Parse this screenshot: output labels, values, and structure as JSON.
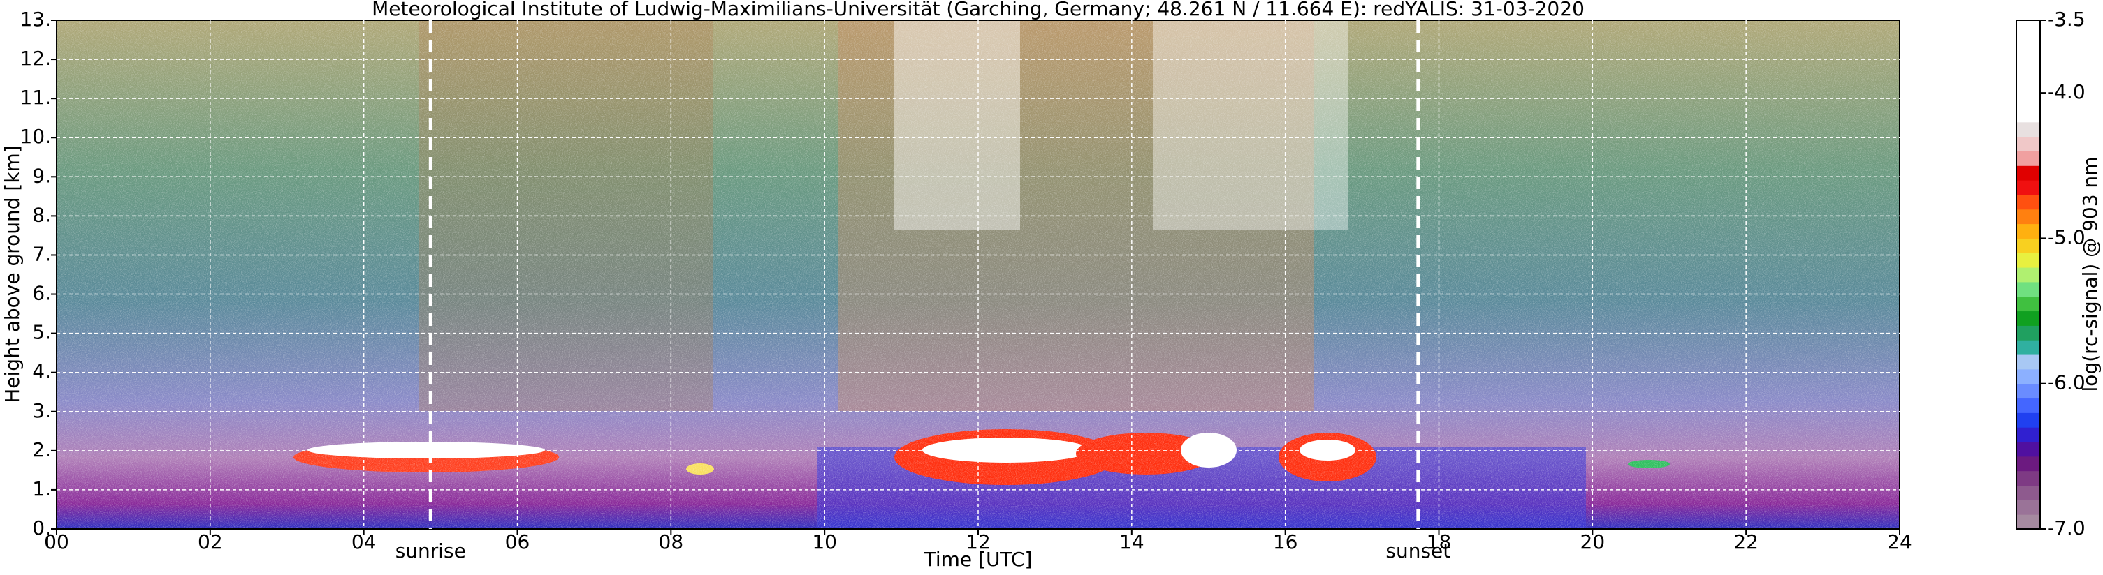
{
  "chart_data": {
    "type": "heatmap",
    "title": "Meteorological Institute of Ludwig-Maximilians-Universität (Garching, Germany; 48.261 N / 11.664 E):    redYALIS: 31-03-2020",
    "x_label": "Time [UTC]",
    "y_label": "Height above ground [km]",
    "xlim": [
      0,
      24
    ],
    "xticks": [
      {
        "value": 0,
        "label": "00"
      },
      {
        "value": 2,
        "label": "02"
      },
      {
        "value": 4,
        "label": "04"
      },
      {
        "value": 6,
        "label": "06"
      },
      {
        "value": 8,
        "label": "08"
      },
      10,
      12,
      14,
      16,
      18,
      20,
      22,
      24
    ],
    "ylim": [
      0,
      13
    ],
    "yticks": [
      {
        "value": 0,
        "label": "0."
      },
      {
        "value": 1,
        "label": "1."
      },
      {
        "value": 2,
        "label": "2."
      },
      {
        "value": 3,
        "label": "3."
      },
      {
        "value": 4,
        "label": "4."
      },
      {
        "value": 5,
        "label": "5."
      },
      {
        "value": 6,
        "label": "6."
      },
      {
        "value": 7,
        "label": "7."
      },
      {
        "value": 8,
        "label": "8."
      },
      {
        "value": 9,
        "label": "9."
      },
      {
        "value": 10,
        "label": "10."
      },
      {
        "value": 11,
        "label": "11."
      },
      {
        "value": 12,
        "label": "12."
      },
      {
        "value": 13,
        "label": "13."
      }
    ],
    "grid": true,
    "annotations": [
      {
        "text": "sunrise",
        "x": 4.87
      },
      {
        "text": "sunset",
        "x": 17.73
      }
    ],
    "colorbar": {
      "label": "log(rc-signal) @ 903 nm",
      "lim": [
        -7.0,
        -3.5
      ],
      "ticks": [
        {
          "value": -7.0,
          "label": "-7.0"
        },
        {
          "value": -6.0,
          "label": "-6.0"
        },
        {
          "value": -5.0,
          "label": "-5.0"
        },
        {
          "value": -4.0,
          "label": "-4.0"
        },
        {
          "value": -3.5,
          "label": "-3.5"
        }
      ],
      "colors": [
        "#a58aa0",
        "#9a7398",
        "#8e5a8e",
        "#7e3a84",
        "#6c1a80",
        "#5010a0",
        "#3020d0",
        "#2040f0",
        "#4466ff",
        "#6a8cff",
        "#8cb0ff",
        "#a8c8f4",
        "#30b0a0",
        "#20a060",
        "#10a020",
        "#40c040",
        "#70e080",
        "#b0f070",
        "#e8f040",
        "#f8d020",
        "#ffb010",
        "#ff8010",
        "#ff5010",
        "#f01010",
        "#e00000",
        "#f0a0a0",
        "#f0c8c8",
        "#e8e0e0",
        "#ffffff",
        "#ffffff",
        "#ffffff",
        "#ffffff",
        "#ffffff",
        "#ffffff",
        "#ffffff"
      ]
    }
  }
}
